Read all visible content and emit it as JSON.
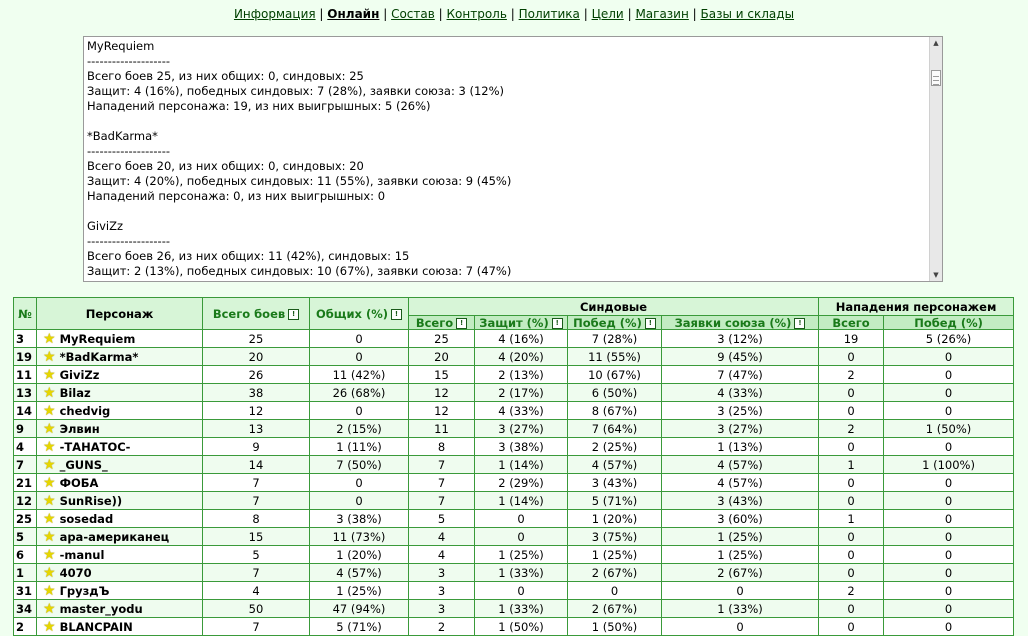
{
  "nav": {
    "items": [
      {
        "label": "Информация",
        "active": false
      },
      {
        "label": "Онлайн",
        "active": true
      },
      {
        "label": "Состав",
        "active": false
      },
      {
        "label": "Контроль",
        "active": false
      },
      {
        "label": "Политика",
        "active": false
      },
      {
        "label": "Цели",
        "active": false
      },
      {
        "label": "Магазин",
        "active": false
      },
      {
        "label": "Базы и склады",
        "active": false
      }
    ],
    "separator": "|"
  },
  "log": {
    "text": "MyRequiem\n--------------------\nВсего боев 25, из них общих: 0, синдовых: 25\nЗащит: 4 (16%), победных синдовых: 7 (28%), заявки союза: 3 (12%)\nНападений персонажа: 19, из них выигрышных: 5 (26%)\n\n*BadKarma*\n--------------------\nВсего боев 20, из них общих: 0, синдовых: 20\nЗащит: 4 (20%), победных синдовых: 11 (55%), заявки союза: 9 (45%)\nНападений персонажа: 0, из них выигрышных: 0\n\nGiviZz\n--------------------\nВсего боев 26, из них общих: 11 (42%), синдовых: 15\nЗащит: 2 (13%), победных синдовых: 10 (67%), заявки союза: 7 (47%)"
  },
  "table": {
    "headers": {
      "num": "№",
      "char": "Персонаж",
      "total": "Всего боев",
      "common": "Общих (%)",
      "synd_group": "Синдовые",
      "attack_group": "Нападения персонажем",
      "s_total": "Всего",
      "s_def": "Защит (%)",
      "s_win": "Побед (%)",
      "s_union": "Заявки союза (%)",
      "a_total": "Всего",
      "a_win": "Побед (%)"
    },
    "rows": [
      [
        "3",
        "MyRequiem",
        "25",
        "0",
        "25",
        "4 (16%)",
        "7 (28%)",
        "3 (12%)",
        "19",
        "5 (26%)"
      ],
      [
        "19",
        "*BadKarma*",
        "20",
        "0",
        "20",
        "4 (20%)",
        "11 (55%)",
        "9 (45%)",
        "0",
        "0"
      ],
      [
        "11",
        "GiviZz",
        "26",
        "11 (42%)",
        "15",
        "2 (13%)",
        "10 (67%)",
        "7 (47%)",
        "2",
        "0"
      ],
      [
        "13",
        "Bilaz",
        "38",
        "26 (68%)",
        "12",
        "2 (17%)",
        "6 (50%)",
        "4 (33%)",
        "0",
        "0"
      ],
      [
        "14",
        "chedvig",
        "12",
        "0",
        "12",
        "4 (33%)",
        "8 (67%)",
        "3 (25%)",
        "0",
        "0"
      ],
      [
        "9",
        "Элвин",
        "13",
        "2 (15%)",
        "11",
        "3 (27%)",
        "7 (64%)",
        "3 (27%)",
        "2",
        "1 (50%)"
      ],
      [
        "4",
        "-ТАНАТОС-",
        "9",
        "1 (11%)",
        "8",
        "3 (38%)",
        "2 (25%)",
        "1 (13%)",
        "0",
        "0"
      ],
      [
        "7",
        "_GUNS_",
        "14",
        "7 (50%)",
        "7",
        "1 (14%)",
        "4 (57%)",
        "4 (57%)",
        "1",
        "1 (100%)"
      ],
      [
        "21",
        "ФОБА",
        "7",
        "0",
        "7",
        "2 (29%)",
        "3 (43%)",
        "4 (57%)",
        "0",
        "0"
      ],
      [
        "12",
        "SunRise))",
        "7",
        "0",
        "7",
        "1 (14%)",
        "5 (71%)",
        "3 (43%)",
        "0",
        "0"
      ],
      [
        "25",
        "sosedad",
        "8",
        "3 (38%)",
        "5",
        "0",
        "1 (20%)",
        "3 (60%)",
        "1",
        "0"
      ],
      [
        "5",
        "apa-американец",
        "15",
        "11 (73%)",
        "4",
        "0",
        "3 (75%)",
        "1 (25%)",
        "0",
        "0"
      ],
      [
        "6",
        "-manul",
        "5",
        "1 (20%)",
        "4",
        "1 (25%)",
        "1 (25%)",
        "1 (25%)",
        "0",
        "0"
      ],
      [
        "1",
        "4070",
        "7",
        "4 (57%)",
        "3",
        "1 (33%)",
        "2 (67%)",
        "2 (67%)",
        "0",
        "0"
      ],
      [
        "31",
        "ГруздЪ",
        "4",
        "1 (25%)",
        "3",
        "0",
        "0",
        "0",
        "2",
        "0"
      ],
      [
        "34",
        "master_yodu",
        "50",
        "47 (94%)",
        "3",
        "1 (33%)",
        "2 (67%)",
        "1 (33%)",
        "0",
        "0"
      ],
      [
        "2",
        "BLANCPAIN",
        "7",
        "5 (71%)",
        "2",
        "1 (50%)",
        "1 (50%)",
        "0",
        "0",
        "0"
      ]
    ]
  },
  "colors": {
    "background": "#f0fff0",
    "header": "#d7f5d7",
    "border": "#3a9a3a",
    "accent_text": "#1a7a1a"
  }
}
